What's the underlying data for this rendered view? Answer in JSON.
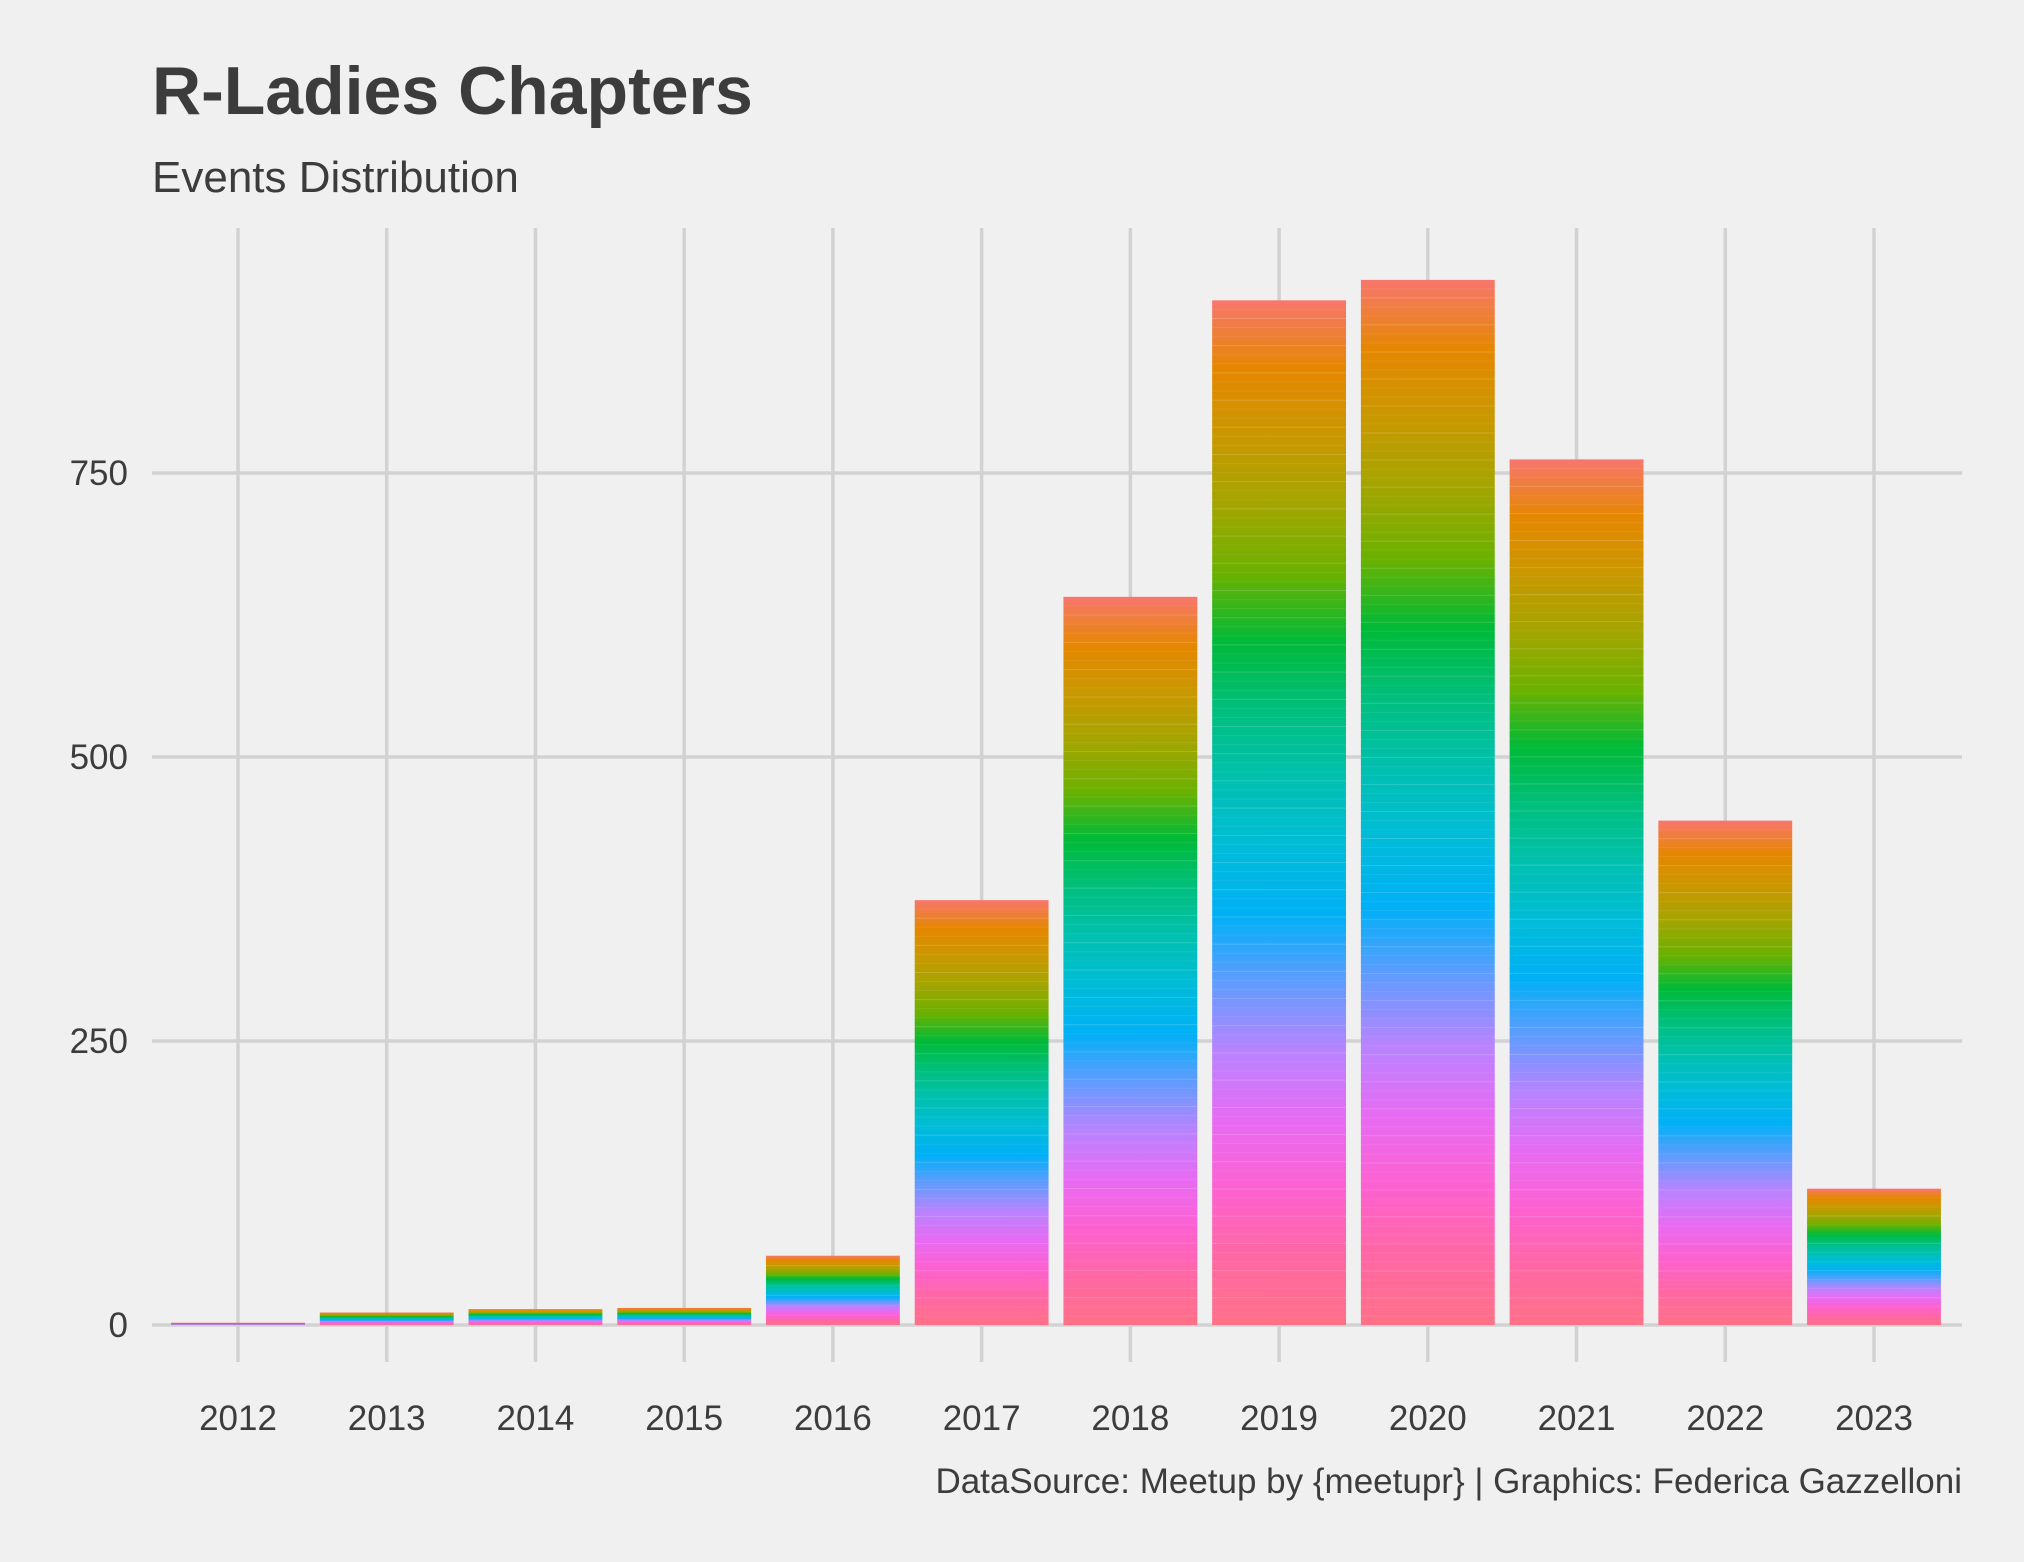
{
  "chart_data": {
    "type": "bar",
    "title": "R-Ladies Chapters",
    "subtitle": "Events Distribution",
    "caption": "DataSource: Meetup by {meetupr} | Graphics: Federica Gazzelloni",
    "xlabel": "",
    "ylabel": "",
    "categories": [
      "2012",
      "2013",
      "2014",
      "2015",
      "2016",
      "2017",
      "2018",
      "2019",
      "2020",
      "2021",
      "2022",
      "2023"
    ],
    "values": [
      2,
      11,
      14,
      15,
      61,
      374,
      641,
      902,
      920,
      762,
      444,
      120
    ],
    "yticks": [
      0,
      250,
      500,
      750
    ],
    "ylim": [
      -30,
      965
    ],
    "grid": true,
    "legend": "none",
    "fill": "stacked by chapter, rainbow hue gradient",
    "stack_colors": [
      "#f8766d",
      "#e58700",
      "#c99800",
      "#a3a500",
      "#6bb100",
      "#00ba38",
      "#00bf7d",
      "#00c0af",
      "#00bcd8",
      "#00b0f6",
      "#619cff",
      "#b983ff",
      "#e76bf3",
      "#fd61d1",
      "#ff67a4",
      "#ff7088"
    ],
    "background_color": "#f0f0f0",
    "grid_color": "#d2d2d2",
    "text_color": "#3c3c3c"
  }
}
